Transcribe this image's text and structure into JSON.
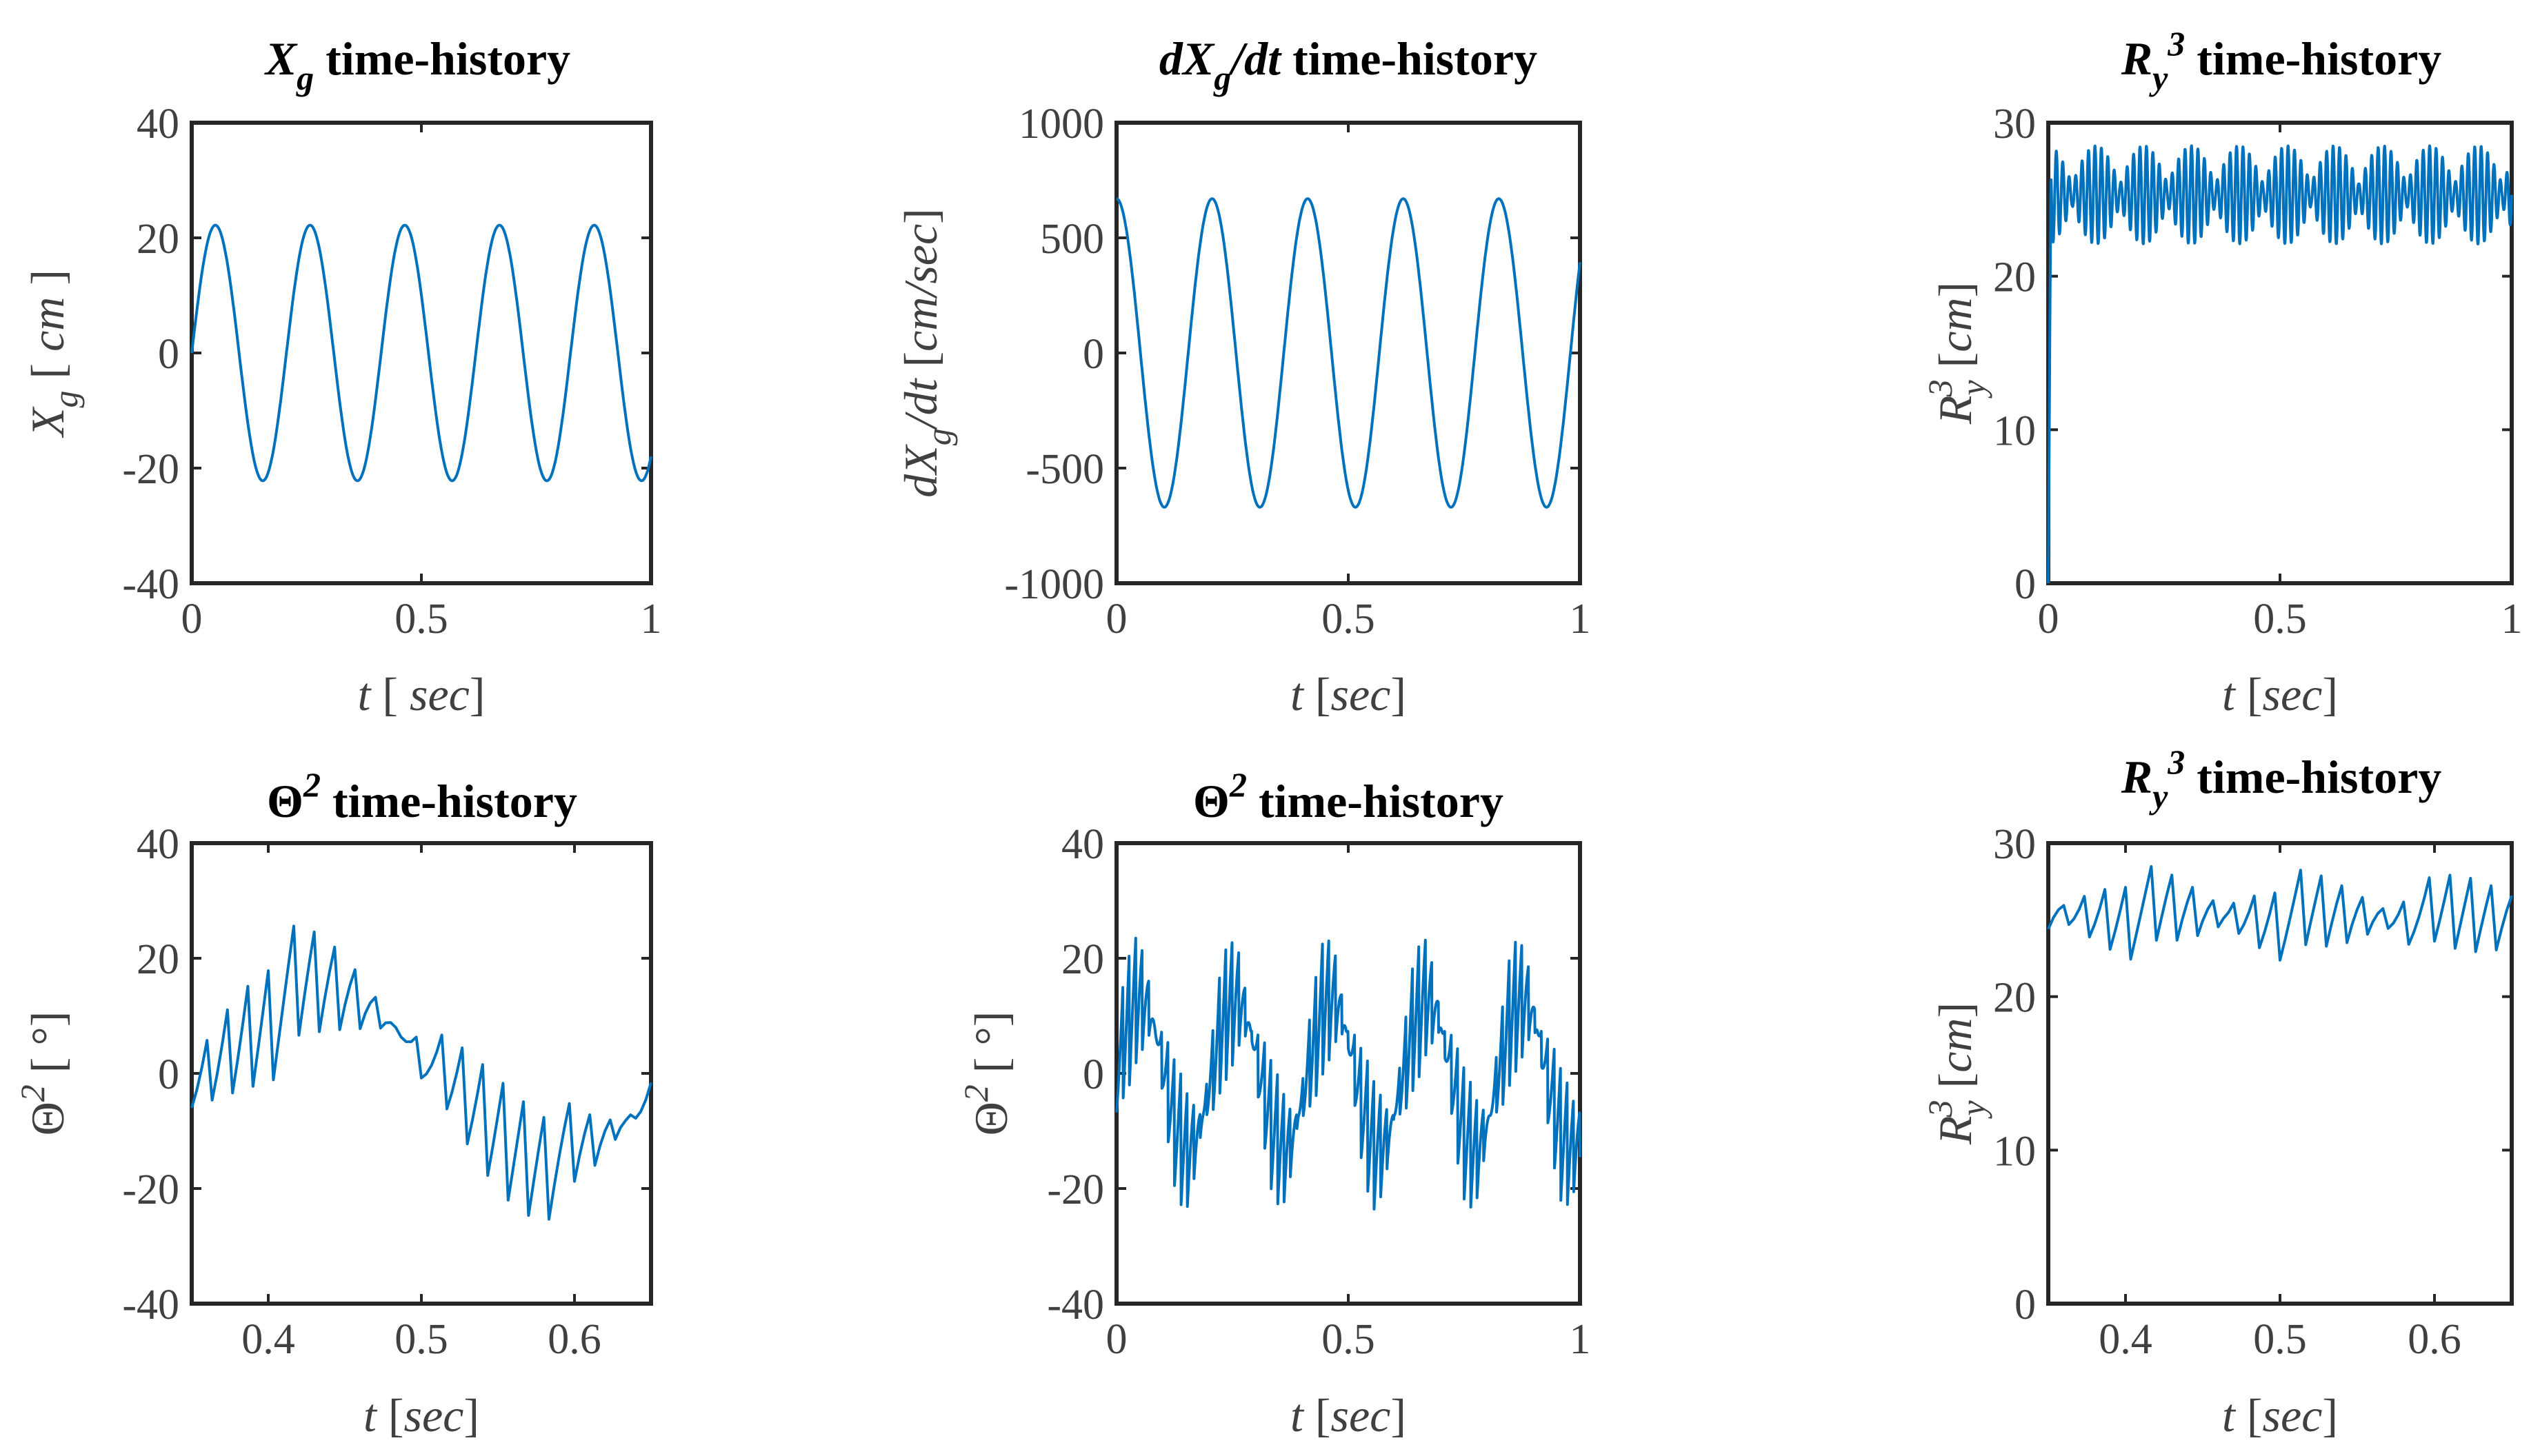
{
  "figure": {
    "line_color": "#0072BD",
    "axis_color": "#262626",
    "text_color": "#404040"
  },
  "chart_data": [
    {
      "id": "xg",
      "type": "line",
      "title": "Xg time-history",
      "xlabel": "t [ sec]",
      "ylabel": "Xg [ cm ]",
      "xlim": [
        0,
        1
      ],
      "ylim": [
        -40,
        40
      ],
      "xticks": [
        0,
        0.5,
        1
      ],
      "yticks": [
        -40,
        -20,
        0,
        20,
        40
      ],
      "xtick_labels": [
        "0",
        "0.5",
        "1"
      ],
      "ytick_labels": [
        "-40",
        "-20",
        "0",
        "20",
        "40"
      ],
      "series": [
        {
          "name": "Xg",
          "signal": {
            "kind": "sine",
            "amplitude": 22.2,
            "frequency": 4.85,
            "phase": 0,
            "t_start": 0,
            "t_end": 1,
            "samples": 600
          }
        }
      ]
    },
    {
      "id": "dxg",
      "type": "line",
      "title": "dXg/dt time-history",
      "xlabel": "t [sec]",
      "ylabel": "dXg/dt [cm/sec]",
      "xlim": [
        0,
        1
      ],
      "ylim": [
        -1000,
        1000
      ],
      "xticks": [
        0,
        0.5,
        1
      ],
      "yticks": [
        -1000,
        -500,
        0,
        500,
        1000
      ],
      "xtick_labels": [
        "0",
        "0.5",
        "1"
      ],
      "ytick_labels": [
        "-1000",
        "-500",
        "0",
        "500",
        "1000"
      ],
      "series": [
        {
          "name": "dXg/dt",
          "signal": {
            "kind": "cosine",
            "amplitude": 670,
            "frequency": 4.85,
            "phase": 0,
            "t_start": 0,
            "t_end": 1,
            "samples": 600
          }
        }
      ]
    },
    {
      "id": "ry-full",
      "type": "line",
      "title": "Ry3 time-history",
      "xlabel": "t [sec]",
      "ylabel": "Ry3 [cm]",
      "xlim": [
        0,
        1
      ],
      "ylim": [
        0,
        30
      ],
      "xticks": [
        0,
        0.5,
        1
      ],
      "yticks": [
        0,
        10,
        20,
        30
      ],
      "xtick_labels": [
        "0",
        "0.5",
        "1"
      ],
      "ytick_labels": [
        "0",
        "10",
        "20",
        "30"
      ],
      "series": [
        {
          "name": "Ry3",
          "signal": {
            "kind": "beat",
            "mean": 25.3,
            "envelope_min": 0.7,
            "envelope_max": 3.2,
            "carrier_frequency": 72,
            "envelope_frequency": 9.7,
            "rise_time": 0.006,
            "start_value": 0,
            "t_start": 0,
            "t_end": 1,
            "samples": 2400
          }
        }
      ]
    },
    {
      "id": "theta-zoom",
      "type": "line",
      "title": "Θ2 time-history",
      "xlabel": "t [sec]",
      "ylabel": "Θ2 [ °]",
      "xlim": [
        0.35,
        0.65
      ],
      "ylim": [
        -40,
        40
      ],
      "xticks": [
        0.4,
        0.5,
        0.6
      ],
      "yticks": [
        -40,
        -20,
        0,
        20,
        40
      ],
      "xtick_labels": [
        "0.4",
        "0.5",
        "0.6"
      ],
      "ytick_labels": [
        "-40",
        "-20",
        "0",
        "20",
        "40"
      ],
      "series": [
        {
          "name": "Θ2",
          "signal": {
            "kind": "sawtooth",
            "base_amplitude": 14,
            "base_frequency": 3.3,
            "base_phase": -1.2,
            "ripple_amplitude": 13,
            "ripple_frequency": 72,
            "t_start": 0.35,
            "t_end": 0.65,
            "samples": 90
          }
        }
      ]
    },
    {
      "id": "theta-full",
      "type": "line",
      "title": "Θ2 time-history",
      "xlabel": "t [sec]",
      "ylabel": "Θ2 [ °]",
      "xlim": [
        0,
        1
      ],
      "ylim": [
        -40,
        40
      ],
      "xticks": [
        0,
        0.5,
        1
      ],
      "yticks": [
        -40,
        -20,
        0,
        20,
        40
      ],
      "xtick_labels": [
        "0",
        "0.5",
        "1"
      ],
      "ytick_labels": [
        "-40",
        "-20",
        "0",
        "20",
        "40"
      ],
      "series": [
        {
          "name": "Θ2",
          "signal": {
            "kind": "sawtooth",
            "base_amplitude": 13,
            "base_frequency": 4.85,
            "base_phase": 0,
            "ripple_amplitude": 12,
            "ripple_frequency": 72,
            "t_start": 0,
            "t_end": 1,
            "samples": 1400
          }
        }
      ]
    },
    {
      "id": "ry-zoom",
      "type": "line",
      "title": "Ry3 time-history",
      "xlabel": "t [sec]",
      "ylabel": "Ry3 [cm]",
      "xlim": [
        0.35,
        0.65
      ],
      "ylim": [
        0,
        30
      ],
      "xticks": [
        0.4,
        0.5,
        0.6
      ],
      "yticks": [
        0,
        10,
        20,
        30
      ],
      "xtick_labels": [
        "0.4",
        "0.5",
        "0.6"
      ],
      "ytick_labels": [
        "0",
        "10",
        "20",
        "30"
      ],
      "series": [
        {
          "name": "Ry3",
          "signal": {
            "kind": "beat-sawtooth",
            "mean": 25.3,
            "envelope_min": 0.7,
            "envelope_max": 3.2,
            "carrier_frequency": 72,
            "envelope_frequency": 9.7,
            "t_start": 0.35,
            "t_end": 0.65,
            "samples": 90
          }
        }
      ]
    }
  ]
}
